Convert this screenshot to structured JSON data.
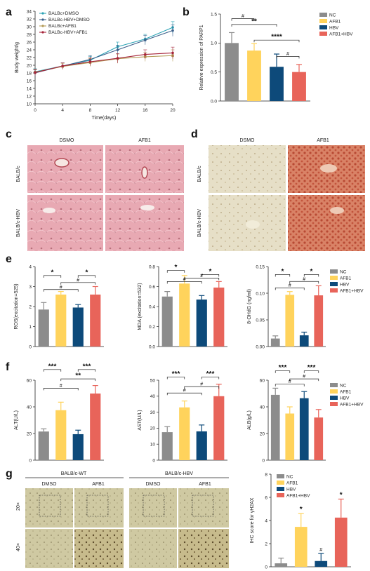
{
  "panels": {
    "a": "a",
    "b": "b",
    "c": "c",
    "d": "d",
    "e": "e",
    "f": "f",
    "g": "g"
  },
  "colors": {
    "NC": "#8c8c8c",
    "AFB1": "#ffd35c",
    "HBV": "#0d4a7a",
    "AFB1_HBV": "#e8645a",
    "BALBc_DMSO": "#2ba3b5",
    "BALBc_HBV_DMSO": "#3a5f8a",
    "BALBc_AFB1": "#b39a56",
    "BALBc_HBV_AFB1": "#a6243a",
    "he_stain": "#e8a9b3",
    "oil_red_bg": "#e3dcc2",
    "oil_red": "#c86048",
    "ihc_bg": "#c9c49a"
  },
  "group_legend": [
    "NC",
    "AFB1",
    "HBV",
    "AFB1+HBV"
  ],
  "panel_c": {
    "col_labels": [
      "DSMO",
      "AFB1"
    ],
    "row_labels": [
      "BALB/c",
      "BALB/c-HBV"
    ]
  },
  "panel_d": {
    "col_labels": [
      "DSMO",
      "AFB1"
    ],
    "row_labels": [
      "BALB/c",
      "BALB/c-HBV"
    ]
  },
  "panel_g": {
    "group_labels": [
      "BALB/c-WT",
      "BALB/c-HBV"
    ],
    "col_labels": [
      "DMSO",
      "AFB1",
      "DMSO",
      "AFB1"
    ],
    "row_labels": [
      "20×",
      "40×"
    ]
  },
  "chart_data": [
    {
      "id": "a",
      "type": "line",
      "xlabel": "Time(days)",
      "ylabel": "Body weight/g",
      "x": [
        0,
        4,
        8,
        12,
        16,
        20
      ],
      "xlim": [
        0,
        20
      ],
      "ylim": [
        10,
        34
      ],
      "xticks": [
        0,
        4,
        8,
        12,
        16,
        20
      ],
      "yticks": [
        10,
        12,
        14,
        16,
        18,
        20,
        22,
        24,
        26,
        28,
        30,
        32,
        34
      ],
      "legend_position": "top-left",
      "series": [
        {
          "name": "BALBc+DMSO",
          "values": [
            18.3,
            19.8,
            21.3,
            24.8,
            26.8,
            29.8
          ]
        },
        {
          "name": "BALBc-HBV+DMSO",
          "values": [
            18.0,
            19.8,
            21.5,
            24.0,
            26.5,
            29.0
          ]
        },
        {
          "name": "BALBc+AFB1",
          "values": [
            18.2,
            19.7,
            20.7,
            21.7,
            22.2,
            22.5
          ]
        },
        {
          "name": "BALBc-HBV+AFB1",
          "values": [
            18.1,
            19.8,
            20.9,
            21.8,
            22.8,
            23.2
          ]
        }
      ],
      "errors": [
        0.8,
        0.8,
        1.0,
        1.2,
        1.2,
        1.5
      ]
    },
    {
      "id": "b",
      "type": "bar",
      "ylabel": "Relative expression of PARP1",
      "categories": [
        "NC",
        "AFB1",
        "HBV",
        "AFB1+HBV"
      ],
      "values": [
        1.0,
        0.87,
        0.59,
        0.5
      ],
      "errors": [
        0.18,
        0.12,
        0.22,
        0.13
      ],
      "ylim": [
        0,
        1.5
      ],
      "yticks": [
        0.0,
        0.5,
        1.0,
        1.5
      ],
      "ytick_labels": [
        "0.0",
        "0.5",
        "1.0",
        "1.5"
      ],
      "sig": [
        {
          "from": 0,
          "to": 2,
          "label": "**",
          "y": 1.32
        },
        {
          "from": 1,
          "to": 3,
          "label": "****",
          "y": 1.05
        },
        {
          "from": 0,
          "to": 1,
          "label": "#",
          "y": 1.42
        },
        {
          "from": 2,
          "to": 3,
          "label": "#",
          "y": 0.77
        }
      ]
    },
    {
      "id": "e1",
      "type": "bar",
      "ylabel": "ROS(excitation=525)",
      "categories": [
        "NC",
        "AFB1",
        "HBV",
        "AFB1+HBV"
      ],
      "values": [
        1.85,
        2.6,
        1.95,
        2.6
      ],
      "errors": [
        0.35,
        0.15,
        0.15,
        0.4
      ],
      "ylim": [
        0,
        4
      ],
      "yticks": [
        0,
        1,
        2,
        3,
        4
      ],
      "ytick_labels": [
        "0",
        "1",
        "2",
        "3",
        "4"
      ],
      "sig": [
        {
          "from": 0,
          "to": 1,
          "label": "*",
          "y": 3.55
        },
        {
          "from": 2,
          "to": 3,
          "label": "*",
          "y": 3.55
        },
        {
          "from": 1,
          "to": 3,
          "label": "#",
          "y": 3.2
        },
        {
          "from": 0,
          "to": 2,
          "label": "#",
          "y": 2.85
        }
      ]
    },
    {
      "id": "e2",
      "type": "bar",
      "ylabel": "MDA (excitation=532)",
      "categories": [
        "NC",
        "AFB1",
        "HBV",
        "AFB1+HBV"
      ],
      "values": [
        0.5,
        0.63,
        0.47,
        0.59
      ],
      "errors": [
        0.05,
        0.08,
        0.04,
        0.06
      ],
      "ylim": [
        0,
        0.8
      ],
      "yticks": [
        0,
        0.2,
        0.4,
        0.6,
        0.8
      ],
      "ytick_labels": [
        "0.0",
        "0.2",
        "0.4",
        "0.6",
        "0.8"
      ],
      "sig": [
        {
          "from": 0,
          "to": 1,
          "label": "*",
          "y": 0.76
        },
        {
          "from": 2,
          "to": 3,
          "label": "*",
          "y": 0.72
        },
        {
          "from": 1,
          "to": 3,
          "label": "#",
          "y": 0.685
        },
        {
          "from": 0,
          "to": 2,
          "label": "#",
          "y": 0.65
        }
      ]
    },
    {
      "id": "e3",
      "type": "bar",
      "ylabel": "8-OHdG (ng/ml)",
      "categories": [
        "NC",
        "AFB1",
        "HBV",
        "AFB1+HBV"
      ],
      "values": [
        0.015,
        0.097,
        0.021,
        0.096
      ],
      "errors": [
        0.005,
        0.006,
        0.006,
        0.018
      ],
      "ylim": [
        0,
        0.15
      ],
      "yticks": [
        0,
        0.05,
        0.1,
        0.15
      ],
      "ytick_labels": [
        "0.00",
        "0.05",
        "0.10",
        "0.15"
      ],
      "sig": [
        {
          "from": 0,
          "to": 1,
          "label": "*",
          "y": 0.135
        },
        {
          "from": 2,
          "to": 3,
          "label": "*",
          "y": 0.135
        },
        {
          "from": 1,
          "to": 3,
          "label": "#",
          "y": 0.122
        },
        {
          "from": 0,
          "to": 2,
          "label": "#",
          "y": 0.11
        }
      ]
    },
    {
      "id": "f1",
      "type": "bar",
      "ylabel": "ALT(U/L)",
      "categories": [
        "NC",
        "AFB1",
        "HBV",
        "AFB1+HBV"
      ],
      "values": [
        21.5,
        37.5,
        19.5,
        50.0
      ],
      "errors": [
        2,
        6,
        3,
        6
      ],
      "ylim": [
        0,
        60
      ],
      "yticks": [
        0,
        20,
        40,
        60
      ],
      "ytick_labels": [
        "0",
        "20",
        "40",
        "60"
      ],
      "sig": [
        {
          "from": 0,
          "to": 1,
          "label": "***",
          "y": 68
        },
        {
          "from": 2,
          "to": 3,
          "label": "***",
          "y": 68
        },
        {
          "from": 1,
          "to": 3,
          "label": "**",
          "y": 61
        },
        {
          "from": 0,
          "to": 2,
          "label": "#",
          "y": 54
        }
      ]
    },
    {
      "id": "f2",
      "type": "bar",
      "ylabel": "AST(U/L)",
      "categories": [
        "NC",
        "AFB1",
        "HBV",
        "AFB1+HBV"
      ],
      "values": [
        17.5,
        33.0,
        18.0,
        40.0
      ],
      "errors": [
        3.5,
        4,
        4,
        7.5
      ],
      "ylim": [
        0,
        50
      ],
      "yticks": [
        0,
        10,
        20,
        30,
        40,
        50
      ],
      "ytick_labels": [
        "0",
        "10",
        "20",
        "30",
        "40",
        "50"
      ],
      "sig": [
        {
          "from": 0,
          "to": 1,
          "label": "***",
          "y": 52
        },
        {
          "from": 2,
          "to": 3,
          "label": "***",
          "y": 52
        },
        {
          "from": 1,
          "to": 3,
          "label": "#",
          "y": 46
        },
        {
          "from": 0,
          "to": 2,
          "label": "#",
          "y": 42
        }
      ]
    },
    {
      "id": "f3",
      "type": "bar",
      "ylabel": "ALB(g/L)",
      "categories": [
        "NC",
        "AFB1",
        "HBV",
        "AFB1+HBV"
      ],
      "values": [
        49.0,
        35.0,
        46.5,
        32.0
      ],
      "errors": [
        5,
        5,
        5,
        6
      ],
      "ylim": [
        0,
        60
      ],
      "yticks": [
        0,
        20,
        40,
        60
      ],
      "ytick_labels": [
        "0",
        "20",
        "40",
        "60"
      ],
      "sig": [
        {
          "from": 0,
          "to": 1,
          "label": "***",
          "y": 67
        },
        {
          "from": 2,
          "to": 3,
          "label": "***",
          "y": 67
        },
        {
          "from": 1,
          "to": 3,
          "label": "#",
          "y": 61
        },
        {
          "from": 0,
          "to": 2,
          "label": "#",
          "y": 57
        }
      ]
    },
    {
      "id": "g",
      "type": "bar",
      "ylabel": "IHC score for  γH2AX",
      "categories": [
        "NC",
        "AFB1",
        "HBV",
        "AFB1+HBV"
      ],
      "values": [
        0.3,
        3.45,
        0.5,
        4.25
      ],
      "errors": [
        0.45,
        1.15,
        0.65,
        1.6
      ],
      "ylim": [
        0,
        8
      ],
      "yticks": [
        0,
        2,
        4,
        6,
        8
      ],
      "ytick_labels": [
        "0",
        "2",
        "4",
        "6",
        "8"
      ],
      "marks": [
        "",
        "*",
        "#",
        "*"
      ]
    }
  ]
}
